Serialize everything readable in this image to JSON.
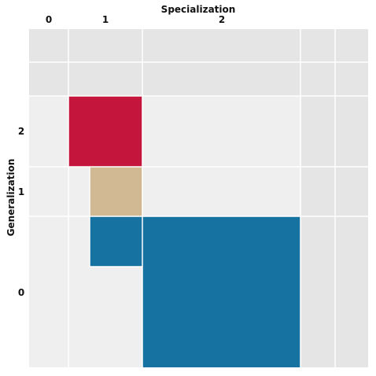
{
  "chart_data": {
    "type": "heatmap",
    "xlabel": "Specialization",
    "ylabel": "Generalization",
    "x_ticks": [
      "0",
      "1",
      "2"
    ],
    "y_ticks": [
      "2",
      "1",
      "0"
    ],
    "grid": true,
    "colors": {
      "outer_background": "#e5e5e5",
      "inner_background": "#efefef",
      "grid_line": "#ffffff",
      "generalization_2": "#c4163d",
      "generalization_1": "#d1b994",
      "generalization_0": "#1672a1"
    },
    "cells": [
      {
        "generalization": 2,
        "specialization": 1,
        "color_key": "generalization_2"
      },
      {
        "generalization": 1,
        "specialization": 1,
        "color_key": "generalization_1"
      },
      {
        "generalization": 0,
        "specialization": 1,
        "color_key": "generalization_0"
      },
      {
        "generalization": 0,
        "specialization": 2,
        "color_key": "generalization_0"
      }
    ]
  }
}
